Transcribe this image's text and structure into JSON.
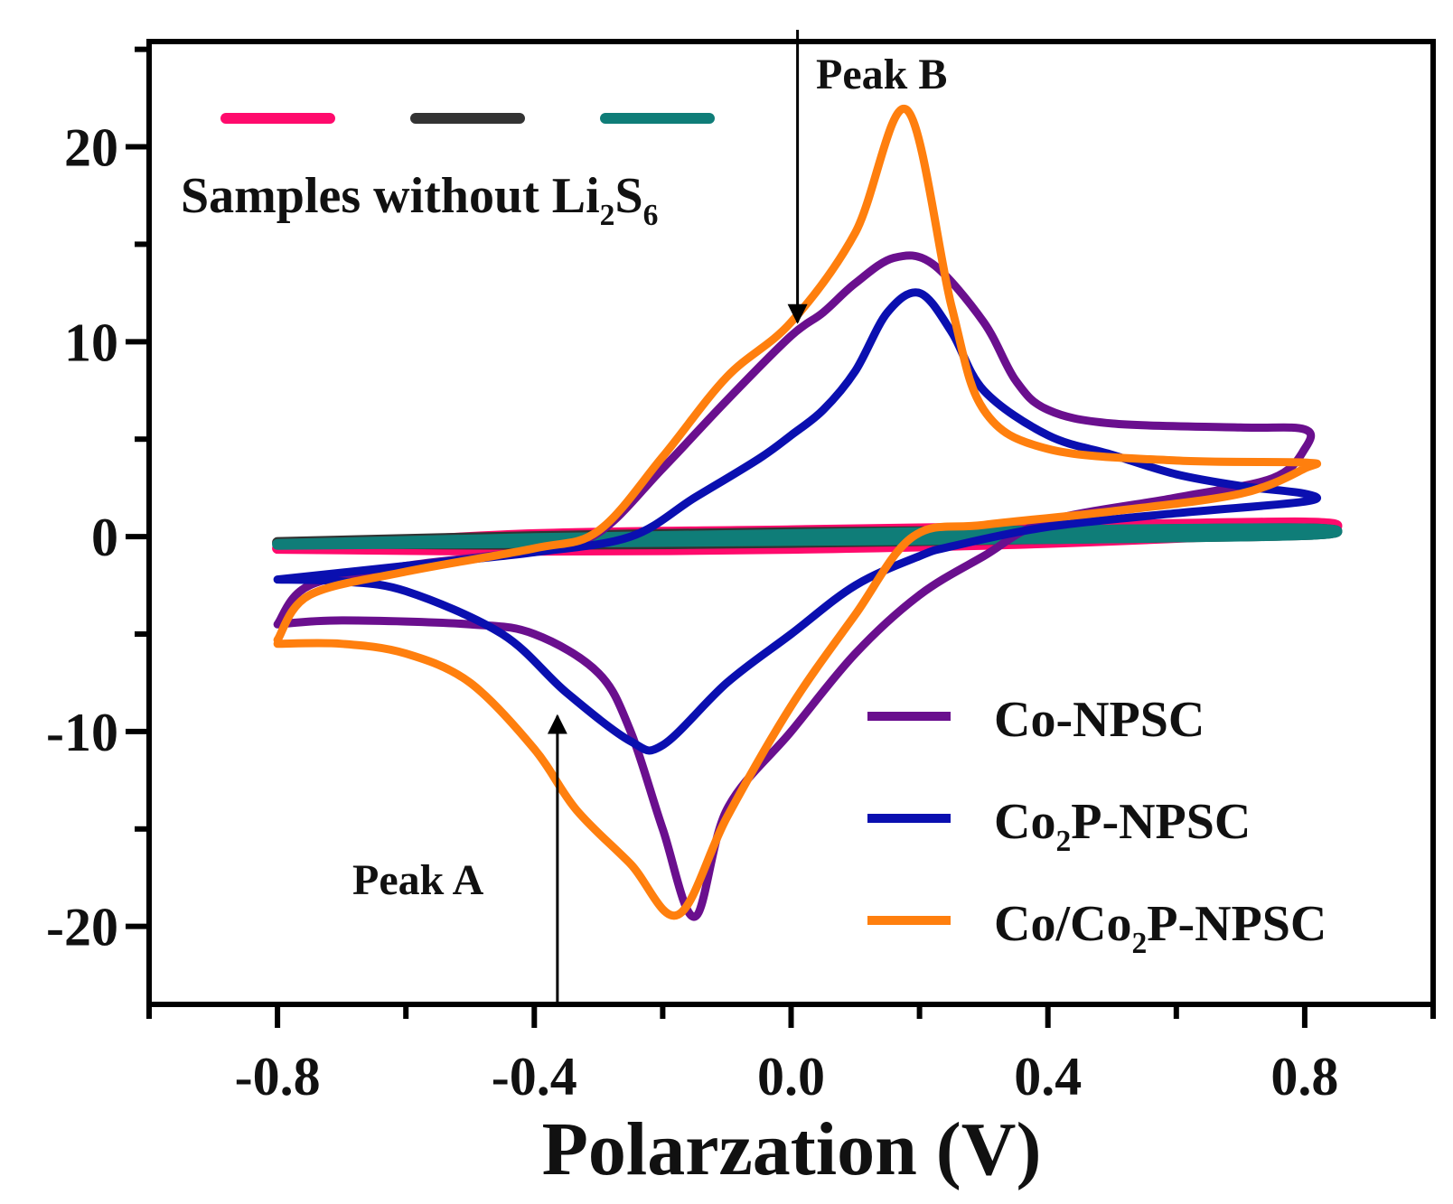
{
  "chart_data": {
    "type": "line",
    "title": "",
    "xlabel": "Polarzation (V)",
    "ylabel": "",
    "xlim": [
      -1.0,
      1.0
    ],
    "ylim": [
      -24,
      25.4
    ],
    "x_ticks": [
      -0.8,
      -0.4,
      0.0,
      0.4,
      0.8
    ],
    "x_tick_labels": [
      "-0.8",
      "-0.4",
      "0.0",
      "0.4",
      "0.8"
    ],
    "x_minor_ticks": [
      -1.0,
      -0.6,
      -0.2,
      0.2,
      0.6,
      1.0
    ],
    "y_ticks": [
      20,
      10,
      0,
      -10,
      -20
    ],
    "y_tick_labels": [
      "20",
      "10",
      "0",
      "-10",
      "-20"
    ],
    "y_minor_ticks": [
      25,
      15,
      5,
      -5,
      -15
    ],
    "grid": false,
    "legend_placement": "bottom-right",
    "series": [
      {
        "name": "Samples without Li2S6 (pink)",
        "color": "#ff0a6c",
        "legend": false,
        "points": [
          [
            -0.8,
            -0.6
          ],
          [
            -0.4,
            0.1
          ],
          [
            0.0,
            0.3
          ],
          [
            0.4,
            0.5
          ],
          [
            0.8,
            0.7
          ],
          [
            0.8,
            0.3
          ],
          [
            0.4,
            -0.3
          ],
          [
            0.0,
            -0.6
          ],
          [
            -0.4,
            -0.7
          ],
          [
            -0.8,
            -0.6
          ]
        ]
      },
      {
        "name": "Samples without Li2S6 (black)",
        "color": "#333333",
        "legend": false,
        "points": [
          [
            -0.8,
            -0.3
          ],
          [
            -0.4,
            0.0
          ],
          [
            0.0,
            0.2
          ],
          [
            0.4,
            0.3
          ],
          [
            0.8,
            0.4
          ],
          [
            0.8,
            0.1
          ],
          [
            0.4,
            -0.1
          ],
          [
            0.0,
            -0.3
          ],
          [
            -0.4,
            -0.4
          ],
          [
            -0.8,
            -0.3
          ]
        ]
      },
      {
        "name": "Samples without Li2S6 (teal)",
        "color": "#0f7d78",
        "legend": false,
        "points": [
          [
            -0.8,
            -0.4
          ],
          [
            -0.4,
            -0.1
          ],
          [
            0.0,
            0.1
          ],
          [
            0.4,
            0.3
          ],
          [
            0.8,
            0.4
          ],
          [
            0.8,
            0.1
          ],
          [
            0.4,
            -0.1
          ],
          [
            0.0,
            -0.2
          ],
          [
            -0.4,
            -0.3
          ],
          [
            -0.8,
            -0.4
          ]
        ]
      },
      {
        "name": "Co-NPSC",
        "color": "#6a0f8e",
        "legend": true,
        "label_parts": [
          {
            "t": "Co-NPSC"
          }
        ],
        "points": [
          [
            -0.8,
            -4.5
          ],
          [
            -0.75,
            -2.5
          ],
          [
            -0.6,
            -1.5
          ],
          [
            -0.4,
            -0.7
          ],
          [
            -0.3,
            0.2
          ],
          [
            -0.2,
            3.5
          ],
          [
            -0.1,
            7
          ],
          [
            0.0,
            10.3
          ],
          [
            0.05,
            11.5
          ],
          [
            0.1,
            13
          ],
          [
            0.16,
            14.3
          ],
          [
            0.22,
            14
          ],
          [
            0.3,
            11
          ],
          [
            0.35,
            8
          ],
          [
            0.4,
            6.5
          ],
          [
            0.5,
            5.8
          ],
          [
            0.7,
            5.6
          ],
          [
            0.8,
            5.5
          ],
          [
            0.8,
            4.5
          ],
          [
            0.75,
            3
          ],
          [
            0.6,
            2
          ],
          [
            0.4,
            0.8
          ],
          [
            0.3,
            -1
          ],
          [
            0.2,
            -3
          ],
          [
            0.1,
            -6
          ],
          [
            0.0,
            -10
          ],
          [
            -0.1,
            -14
          ],
          [
            -0.15,
            -19.5
          ],
          [
            -0.2,
            -15
          ],
          [
            -0.25,
            -10
          ],
          [
            -0.3,
            -7
          ],
          [
            -0.4,
            -5
          ],
          [
            -0.5,
            -4.5
          ],
          [
            -0.7,
            -4.3
          ],
          [
            -0.8,
            -4.5
          ]
        ]
      },
      {
        "name": "Co2P-NPSC",
        "color": "#0a0fb0",
        "legend": true,
        "label_parts": [
          {
            "t": "Co"
          },
          {
            "t": "2",
            "sub": true
          },
          {
            "t": "P-NPSC"
          }
        ],
        "points": [
          [
            -0.8,
            -2.2
          ],
          [
            -0.6,
            -1.5
          ],
          [
            -0.4,
            -0.8
          ],
          [
            -0.25,
            0
          ],
          [
            -0.15,
            2
          ],
          [
            -0.05,
            4
          ],
          [
            0.0,
            5.2
          ],
          [
            0.05,
            6.5
          ],
          [
            0.1,
            8.5
          ],
          [
            0.15,
            11.5
          ],
          [
            0.2,
            12.5
          ],
          [
            0.25,
            10.5
          ],
          [
            0.3,
            7.5
          ],
          [
            0.4,
            5.2
          ],
          [
            0.5,
            4.2
          ],
          [
            0.6,
            3.2
          ],
          [
            0.7,
            2.6
          ],
          [
            0.8,
            2.2
          ],
          [
            0.8,
            1.8
          ],
          [
            0.6,
            1.2
          ],
          [
            0.4,
            0.5
          ],
          [
            0.25,
            -0.5
          ],
          [
            0.2,
            -1
          ],
          [
            0.1,
            -2.5
          ],
          [
            0.0,
            -5
          ],
          [
            -0.1,
            -7.5
          ],
          [
            -0.2,
            -10.7
          ],
          [
            -0.25,
            -10.5
          ],
          [
            -0.35,
            -8
          ],
          [
            -0.45,
            -5
          ],
          [
            -0.6,
            -2.8
          ],
          [
            -0.7,
            -2.3
          ],
          [
            -0.8,
            -2.2
          ]
        ]
      },
      {
        "name": "Co/Co2P-NPSC",
        "color": "#ff7f0e",
        "legend": true,
        "label_parts": [
          {
            "t": "Co/Co"
          },
          {
            "t": "2",
            "sub": true
          },
          {
            "t": "P-NPSC"
          }
        ],
        "points": [
          [
            -0.8,
            -5.3
          ],
          [
            -0.75,
            -3
          ],
          [
            -0.6,
            -1.8
          ],
          [
            -0.4,
            -0.6
          ],
          [
            -0.3,
            0.3
          ],
          [
            -0.2,
            4.1
          ],
          [
            -0.1,
            8.2
          ],
          [
            0.0,
            11
          ],
          [
            0.1,
            15.6
          ],
          [
            0.18,
            21.9
          ],
          [
            0.25,
            11.8
          ],
          [
            0.3,
            6.5
          ],
          [
            0.4,
            4.5
          ],
          [
            0.6,
            3.9
          ],
          [
            0.8,
            3.8
          ],
          [
            0.8,
            3.5
          ],
          [
            0.7,
            2.2
          ],
          [
            0.5,
            1.3
          ],
          [
            0.3,
            0.6
          ],
          [
            0.19,
            0
          ],
          [
            0.1,
            -4
          ],
          [
            0.0,
            -8.7
          ],
          [
            -0.1,
            -14.4
          ],
          [
            -0.176,
            -19.4
          ],
          [
            -0.25,
            -16.8
          ],
          [
            -0.335,
            -14
          ],
          [
            -0.4,
            -10.9
          ],
          [
            -0.5,
            -7.5
          ],
          [
            -0.6,
            -6
          ],
          [
            -0.7,
            -5.5
          ],
          [
            -0.8,
            -5.5
          ]
        ]
      }
    ],
    "top_legend": {
      "colors": [
        "#ff0a6c",
        "#333333",
        "#0f7d78"
      ],
      "label_parts": [
        {
          "t": "Samples without Li"
        },
        {
          "t": "2",
          "sub": true
        },
        {
          "t": "S"
        },
        {
          "t": "6",
          "sub": true
        }
      ]
    },
    "annotations": [
      {
        "text": "Peak A",
        "arrow_to": [
          -0.364,
          -9.2
        ],
        "arrow_from": [
          -0.364,
          -24
        ]
      },
      {
        "text": "Peak B",
        "arrow_to": [
          0.01,
          11
        ],
        "arrow_from": [
          0.01,
          26
        ]
      }
    ]
  }
}
